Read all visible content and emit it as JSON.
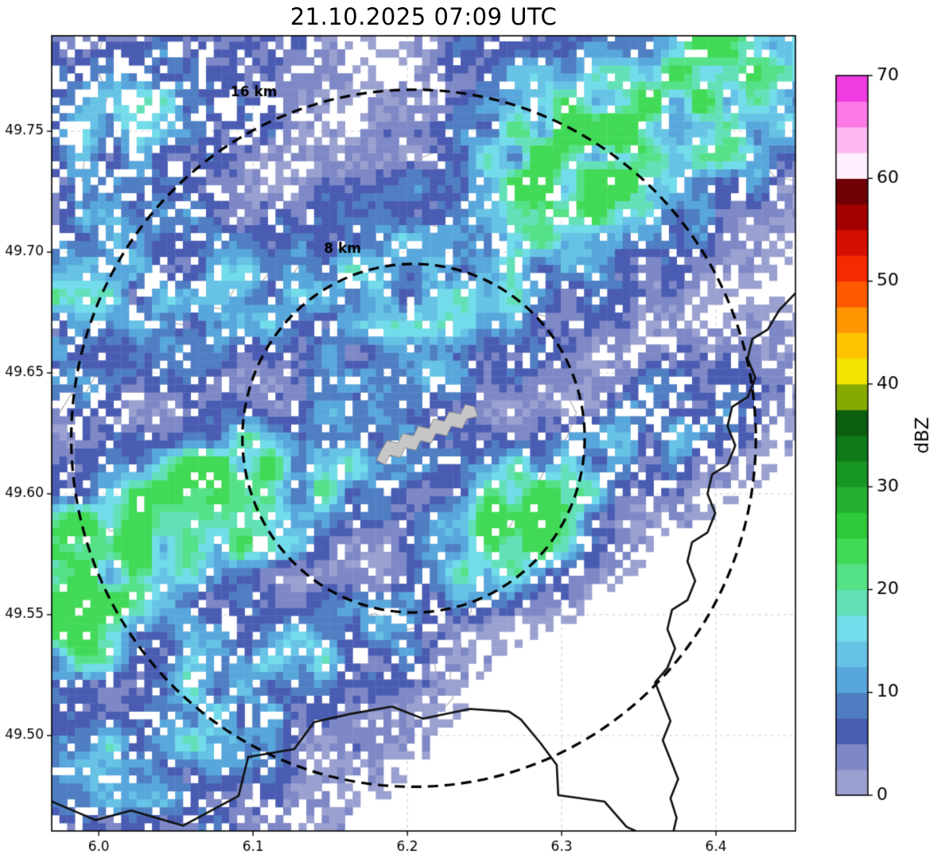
{
  "title": "21.10.2025 07:09 UTC",
  "chart_data": {
    "type": "heatmap",
    "title": "21.10.2025 07:09 UTC",
    "x_axis": {
      "ticks": [
        "6.0",
        "6.1",
        "6.2",
        "6.3",
        "6.4"
      ],
      "range": [
        5.9695,
        6.4515
      ]
    },
    "y_axis": {
      "ticks": [
        "49.50",
        "49.55",
        "49.60",
        "49.65",
        "49.70",
        "49.75"
      ],
      "range": [
        49.4605,
        49.7895
      ]
    },
    "grid": true,
    "km_per_deg_lon": 72.13,
    "km_per_deg_lat": 110.95,
    "colorbar": {
      "label": "dBZ",
      "ticks": [
        "0",
        "10",
        "20",
        "30",
        "40",
        "50",
        "60",
        "70"
      ],
      "range": [
        0,
        70
      ],
      "step": 2.5,
      "colors": [
        "#9aa1d0",
        "#7e88c6",
        "#4a5cb2",
        "#4f7ec3",
        "#58a7dc",
        "#66c3e6",
        "#72dcea",
        "#63e0b8",
        "#55e188",
        "#41da57",
        "#2fc93c",
        "#23b12f",
        "#189623",
        "#0e7a19",
        "#0b5e0f",
        "#86aa00",
        "#f2e300",
        "#ffc400",
        "#ff9500",
        "#ff5a00",
        "#f42b00",
        "#d40f00",
        "#a30000",
        "#6f0005",
        "#ffeeff",
        "#ffb9f2",
        "#fb7ae8",
        "#ee3ce0"
      ]
    },
    "range_rings": {
      "center": {
        "lon": 6.204,
        "lat": 49.623
      },
      "rings": [
        {
          "radius_km": 8,
          "label": "8 km",
          "label_pos": {
            "lon": 6.158,
            "lat": 49.7013
          }
        },
        {
          "radius_km": 16,
          "label": "16 km",
          "label_pos": {
            "lon": 6.1005,
            "lat": 49.7658
          }
        }
      ]
    },
    "airport_outline": [
      [
        6.18,
        49.614
      ],
      [
        6.183,
        49.618
      ],
      [
        6.187,
        49.622
      ],
      [
        6.194,
        49.621
      ],
      [
        6.197,
        49.625
      ],
      [
        6.204,
        49.624
      ],
      [
        6.207,
        49.628
      ],
      [
        6.214,
        49.627
      ],
      [
        6.217,
        49.631
      ],
      [
        6.224,
        49.63
      ],
      [
        6.227,
        49.634
      ],
      [
        6.2345,
        49.633
      ],
      [
        6.2375,
        49.637
      ],
      [
        6.2435,
        49.636
      ],
      [
        6.2455,
        49.632
      ],
      [
        6.2385,
        49.631
      ],
      [
        6.2355,
        49.627
      ],
      [
        6.2285,
        49.628
      ],
      [
        6.2255,
        49.624
      ],
      [
        6.2185,
        49.625
      ],
      [
        6.2155,
        49.621
      ],
      [
        6.2085,
        49.622
      ],
      [
        6.2055,
        49.618
      ],
      [
        6.1985,
        49.619
      ],
      [
        6.1955,
        49.615
      ],
      [
        6.1885,
        49.616
      ],
      [
        6.1855,
        49.612
      ]
    ],
    "map_lines": [
      [
        [
          6.003,
          49.7895
        ],
        [
          5.998,
          49.777
        ],
        [
          6.006,
          49.765
        ],
        [
          6.0,
          49.752
        ],
        [
          5.992,
          49.744
        ],
        [
          5.989,
          49.7305
        ],
        [
          5.9935,
          49.7205
        ],
        [
          5.988,
          49.711
        ]
      ],
      [
        [
          6.247,
          49.7895
        ],
        [
          6.2375,
          49.7775
        ],
        [
          6.2465,
          49.7685
        ],
        [
          6.2395,
          49.7565
        ],
        [
          6.2245,
          49.7525
        ],
        [
          6.2215,
          49.7425
        ],
        [
          6.2075,
          49.7385
        ],
        [
          6.2115,
          49.7285
        ],
        [
          6.2035,
          49.7215
        ],
        [
          6.1885,
          49.7235
        ],
        [
          6.1765,
          49.7165
        ],
        [
          6.1695,
          49.7065
        ],
        [
          6.1575,
          49.7075
        ],
        [
          6.1475,
          49.6975
        ],
        [
          6.1335,
          49.6985
        ],
        [
          6.1255,
          49.6905
        ],
        [
          6.1105,
          49.6915
        ],
        [
          6.1005,
          49.6835
        ],
        [
          6.0885,
          49.6855
        ],
        [
          6.0805,
          49.6765
        ],
        [
          6.0675,
          49.6775
        ],
        [
          6.0605,
          49.6695
        ],
        [
          6.0485,
          49.6705
        ],
        [
          6.0405,
          49.6615
        ],
        [
          6.0305,
          49.6625
        ],
        [
          6.0205,
          49.6545
        ],
        [
          6.0125,
          49.6555
        ],
        [
          6.0055,
          49.6475
        ],
        [
          5.9975,
          49.6485
        ],
        [
          5.9905,
          49.6405
        ],
        [
          5.9825,
          49.6415
        ],
        [
          5.9745,
          49.6335
        ],
        [
          5.9695,
          49.634
        ]
      ],
      [
        [
          6.2035,
          49.7215
        ],
        [
          6.2135,
          49.7115
        ],
        [
          6.2255,
          49.7095
        ],
        [
          6.2335,
          49.6995
        ],
        [
          6.2475,
          49.6975
        ],
        [
          6.2555,
          49.6875
        ],
        [
          6.2695,
          49.6855
        ],
        [
          6.2775,
          49.6755
        ],
        [
          6.2895,
          49.6735
        ],
        [
          6.2975,
          49.6635
        ],
        [
          6.3055,
          49.6535
        ],
        [
          6.3015,
          49.6435
        ],
        [
          6.3095,
          49.6335
        ],
        [
          6.3035,
          49.6235
        ],
        [
          6.2935,
          49.6155
        ],
        [
          6.2855,
          49.6055
        ],
        [
          6.2755,
          49.5975
        ],
        [
          6.2675,
          49.5875
        ],
        [
          6.2575,
          49.5795
        ],
        [
          6.2495,
          49.5695
        ],
        [
          6.2395,
          49.5615
        ],
        [
          6.2415,
          49.5515
        ],
        [
          6.2335,
          49.5435
        ],
        [
          6.2355,
          49.5335
        ],
        [
          6.2275,
          49.5255
        ],
        [
          6.2295,
          49.5155
        ],
        [
          6.2215,
          49.5095
        ]
      ],
      [
        [
          5.9695,
          49.5965
        ],
        [
          5.9815,
          49.5905
        ],
        [
          5.9955,
          49.5925
        ],
        [
          6.0075,
          49.5845
        ],
        [
          6.0215,
          49.5865
        ],
        [
          6.0335,
          49.5785
        ],
        [
          6.0495,
          49.5805
        ],
        [
          6.0595,
          49.5725
        ],
        [
          6.0755,
          49.5745
        ],
        [
          6.0855,
          49.5665
        ],
        [
          6.1015,
          49.5685
        ],
        [
          6.1115,
          49.5605
        ],
        [
          6.1275,
          49.5625
        ],
        [
          6.1375,
          49.5545
        ],
        [
          6.1535,
          49.5565
        ],
        [
          6.1635,
          49.5485
        ],
        [
          6.1795,
          49.5505
        ],
        [
          6.1895,
          49.5425
        ],
        [
          6.2055,
          49.5445
        ],
        [
          6.2155,
          49.5365
        ],
        [
          6.2185,
          49.5265
        ],
        [
          6.2135,
          49.5165
        ],
        [
          6.2195,
          49.5115
        ]
      ],
      [
        [
          6.3135,
          49.7895
        ],
        [
          6.3255,
          49.7795
        ],
        [
          6.3415,
          49.7775
        ],
        [
          6.3535,
          49.7675
        ],
        [
          6.3695,
          49.7655
        ],
        [
          6.3815,
          49.7555
        ],
        [
          6.3975,
          49.7535
        ],
        [
          6.4095,
          49.7435
        ],
        [
          6.4255,
          49.7415
        ],
        [
          6.4375,
          49.7315
        ],
        [
          6.4515,
          49.7295
        ]
      ]
    ],
    "borders": [
      [
        [
          6.4515,
          49.683
        ],
        [
          6.441,
          49.676
        ],
        [
          6.4335,
          49.668
        ],
        [
          6.4235,
          49.664
        ],
        [
          6.4205,
          49.656
        ],
        [
          6.4255,
          49.648
        ],
        [
          6.4205,
          49.64
        ],
        [
          6.4105,
          49.636
        ],
        [
          6.4075,
          49.628
        ],
        [
          6.4125,
          49.62
        ],
        [
          6.4075,
          49.612
        ],
        [
          6.3975,
          49.608
        ],
        [
          6.3945,
          49.6
        ],
        [
          6.3995,
          49.592
        ],
        [
          6.3945,
          49.584
        ],
        [
          6.3845,
          49.58
        ],
        [
          6.3815,
          49.572
        ],
        [
          6.3865,
          49.564
        ],
        [
          6.3815,
          49.556
        ],
        [
          6.3715,
          49.552
        ],
        [
          6.3685,
          49.544
        ],
        [
          6.3735,
          49.536
        ],
        [
          6.3685,
          49.528
        ],
        [
          6.3605,
          49.522
        ],
        [
          6.3655,
          49.514
        ],
        [
          6.3705,
          49.506
        ],
        [
          6.3655,
          49.498
        ],
        [
          6.3705,
          49.49
        ],
        [
          6.3755,
          49.482
        ],
        [
          6.3705,
          49.474
        ],
        [
          6.3745,
          49.466
        ],
        [
          6.3725,
          49.4605
        ]
      ],
      [
        [
          5.9695,
          49.4727
        ],
        [
          5.998,
          49.465
        ],
        [
          6.021,
          49.469
        ],
        [
          6.0546,
          49.4627
        ],
        [
          6.0906,
          49.475
        ],
        [
          6.0968,
          49.4911
        ],
        [
          6.1267,
          49.4944
        ],
        [
          6.1396,
          49.5056
        ],
        [
          6.1628,
          49.5089
        ],
        [
          6.19,
          49.512
        ],
        [
          6.21,
          49.507
        ],
        [
          6.2405,
          49.511
        ],
        [
          6.2659,
          49.5099
        ],
        [
          6.2736,
          49.5066
        ],
        [
          6.2865,
          49.4967
        ],
        [
          6.2968,
          49.4878
        ],
        [
          6.2978,
          49.4753
        ],
        [
          6.3277,
          49.4727
        ],
        [
          6.3421,
          49.4622
        ],
        [
          6.348,
          49.4605
        ]
      ]
    ],
    "echo_cells": {
      "cell_deg_lon": 0.005,
      "cell_deg_lat": 0.0033,
      "max_dbz_clamp": 24.9,
      "blobs": [
        {
          "lon": 6.03,
          "lat": 49.755,
          "s1": 5.5,
          "s2": 3.2,
          "angle": 28,
          "peak": 11,
          "drop": 0.3
        },
        {
          "lon": 5.995,
          "lat": 49.69,
          "s1": 5.0,
          "s2": 2.6,
          "angle": 30,
          "peak": 13,
          "drop": 0.2
        },
        {
          "lon": 6.12,
          "lat": 49.684,
          "s1": 8.5,
          "s2": 2.6,
          "angle": 18,
          "peak": 12,
          "drop": 0.12
        },
        {
          "lon": 6.23,
          "lat": 49.672,
          "s1": 6.0,
          "s2": 2.6,
          "angle": 25,
          "peak": 13,
          "drop": 0.12
        },
        {
          "lon": 6.205,
          "lat": 49.647,
          "s1": 3.0,
          "s2": 1.8,
          "angle": 25,
          "peak": 6,
          "drop": 0.35
        },
        {
          "lon": 6.35,
          "lat": 49.754,
          "s1": 8.5,
          "s2": 3.6,
          "angle": 33,
          "peak": 24,
          "drop": 0.1
        },
        {
          "lon": 6.268,
          "lat": 49.716,
          "s1": 4.5,
          "s2": 2.2,
          "angle": 33,
          "peak": 13,
          "drop": 0.15
        },
        {
          "lon": 6.245,
          "lat": 49.786,
          "s1": 2.6,
          "s2": 1.4,
          "angle": 20,
          "peak": 8,
          "drop": 0.25
        },
        {
          "lon": 6.36,
          "lat": 49.627,
          "s1": 4.0,
          "s2": 2.1,
          "angle": 28,
          "peak": 10,
          "drop": 0.25
        },
        {
          "lon": 6.27,
          "lat": 49.589,
          "s1": 3.5,
          "s2": 2.0,
          "angle": 30,
          "peak": 23,
          "drop": 0.1
        },
        {
          "lon": 6.05,
          "lat": 49.589,
          "s1": 7.5,
          "s2": 2.6,
          "angle": 21,
          "peak": 24,
          "drop": 0.1
        },
        {
          "lon": 6.16,
          "lat": 49.606,
          "s1": 3.5,
          "s2": 1.8,
          "angle": 21,
          "peak": 13,
          "drop": 0.15
        },
        {
          "lon": 5.99,
          "lat": 49.552,
          "s1": 4.5,
          "s2": 2.8,
          "angle": 28,
          "peak": 22,
          "drop": 0.1
        },
        {
          "lon": 6.05,
          "lat": 49.506,
          "s1": 6.5,
          "s2": 3.4,
          "angle": 22,
          "peak": 12,
          "drop": 0.15
        },
        {
          "lon": 6.134,
          "lat": 49.531,
          "s1": 4.5,
          "s2": 2.0,
          "angle": 18,
          "peak": 12,
          "drop": 0.15
        },
        {
          "lon": 6.03,
          "lat": 49.473,
          "s1": 5.5,
          "s2": 2.4,
          "angle": 12,
          "peak": 8,
          "drop": 0.3
        },
        {
          "lon": 6.2,
          "lat": 49.551,
          "s1": 2.2,
          "s2": 1.5,
          "angle": 25,
          "peak": 8,
          "drop": 0.25
        },
        {
          "lon": 5.982,
          "lat": 49.645,
          "s1": 2.4,
          "s2": 1.8,
          "angle": 20,
          "peak": 7,
          "drop": 0.3
        }
      ]
    }
  }
}
